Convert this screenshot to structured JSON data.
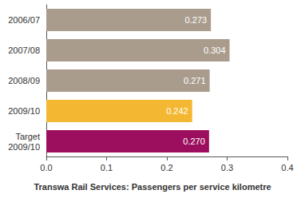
{
  "chart_data": {
    "type": "bar",
    "orientation": "horizontal",
    "title": "Transwa Rail Services: Passengers per service kilometre",
    "categories": [
      "2006/07",
      "2007/08",
      "2008/09",
      "2009/10",
      "Target\n2009/10"
    ],
    "values": [
      0.273,
      0.304,
      0.271,
      0.242,
      0.27
    ],
    "value_labels": [
      "0.273",
      "0.304",
      "0.271",
      "0.242",
      "0.270"
    ],
    "colors": [
      "#a99c8d",
      "#a99c8d",
      "#a99c8d",
      "#f4b731",
      "#9c0f5f"
    ],
    "data_labels": true,
    "xlim": [
      0,
      0.4
    ],
    "xticks": [
      {
        "value": 0,
        "label": "0.0"
      },
      0.1,
      0.2,
      0.3,
      0.4
    ],
    "grid": false
  }
}
